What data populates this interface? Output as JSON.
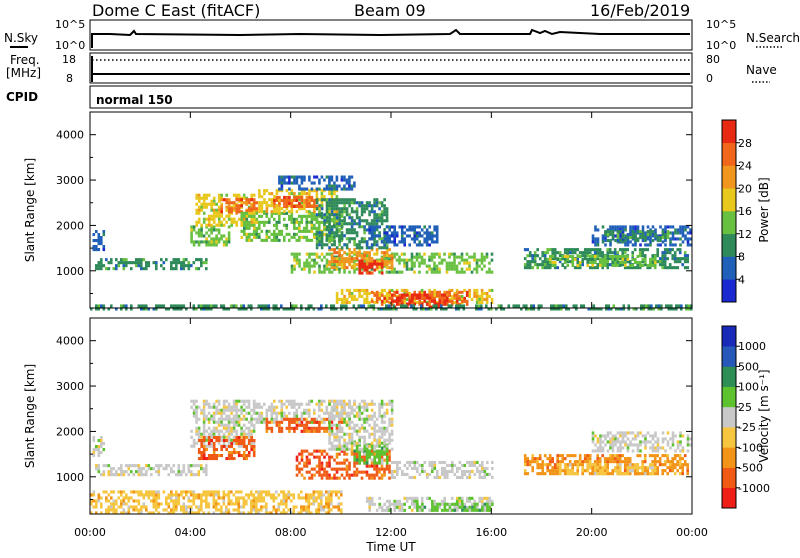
{
  "header": {
    "station": "Dome C East (fitACF)",
    "beam": "Beam 09",
    "date": "16/Feb/2019"
  },
  "top_panels": {
    "nsky_label": "N.Sky",
    "nsky_ticks": [
      "10^5",
      "10^0"
    ],
    "nsearch_label": "N.Search",
    "nsearch_ticks": [
      "10^5",
      "10^0"
    ],
    "freq_label_1": "Freq.",
    "freq_label_2": "[MHz]",
    "freq_ticks": [
      "18",
      "8"
    ],
    "nave_label": "Nave",
    "nave_ticks": [
      "80",
      "0"
    ],
    "cpid_label": "CPID",
    "cpid_value": "normal 150"
  },
  "colors": {
    "power": [
      "#1a2ad0",
      "#2060b8",
      "#2f8a5a",
      "#68c040",
      "#e8c81c",
      "#f0961e",
      "#f0661a",
      "#e82a12"
    ],
    "velocity": [
      "#ef1e16",
      "#f05a14",
      "#f39418",
      "#f6c640",
      "#c8c8c8",
      "#5cc22e",
      "#2e8f56",
      "#2558b8",
      "#1a2ab8"
    ],
    "ground_scatter": "#c8c8c8"
  },
  "chart_data": [
    {
      "type": "heatmap",
      "name": "power",
      "xlabel": "Time UT",
      "ylabel": "Slant Range [km]",
      "xlim": [
        0,
        24
      ],
      "ylim": [
        180,
        4500
      ],
      "x_tick_labels": [
        "00:00",
        "04:00",
        "08:00",
        "12:00",
        "16:00",
        "20:00",
        "00:00"
      ],
      "y_ticks": [
        1000,
        2000,
        3000,
        4000
      ],
      "colorbar": {
        "label": "Power [dB]",
        "tick_labels": [
          "28",
          "24",
          "20",
          "16",
          "12",
          "8",
          "4"
        ],
        "range": [
          0,
          32
        ]
      },
      "regions": [
        {
          "t0": 0.1,
          "t1": 0.5,
          "r0": 1500,
          "r1": 1900,
          "level": 1
        },
        {
          "t0": 0.2,
          "t1": 4.6,
          "r0": 1020,
          "r1": 1280,
          "level": 2
        },
        {
          "t0": 4.0,
          "t1": 5.5,
          "r0": 1600,
          "r1": 2000,
          "level": 3
        },
        {
          "t0": 4.2,
          "t1": 6.5,
          "r0": 2000,
          "r1": 2700,
          "level": 4
        },
        {
          "t0": 5.2,
          "t1": 6.6,
          "r0": 2300,
          "r1": 2600,
          "level": 6
        },
        {
          "t0": 6.0,
          "t1": 10.0,
          "r0": 1700,
          "r1": 2300,
          "level": 3
        },
        {
          "t0": 6.7,
          "t1": 9.8,
          "r0": 2300,
          "r1": 2800,
          "level": 4
        },
        {
          "t0": 7.3,
          "t1": 9.0,
          "r0": 2450,
          "r1": 2650,
          "level": 6
        },
        {
          "t0": 7.5,
          "t1": 10.5,
          "r0": 2800,
          "r1": 3100,
          "level": 1
        },
        {
          "t0": 8.0,
          "t1": 16.0,
          "r0": 1000,
          "r1": 1400,
          "level": 3
        },
        {
          "t0": 9.5,
          "t1": 12.0,
          "r0": 1100,
          "r1": 1500,
          "level": 5
        },
        {
          "t0": 10.7,
          "t1": 11.6,
          "r0": 950,
          "r1": 1250,
          "level": 7
        },
        {
          "t0": 9.0,
          "t1": 11.8,
          "r0": 1500,
          "r1": 2600,
          "level": 2
        },
        {
          "t0": 11.0,
          "t1": 13.8,
          "r0": 1600,
          "r1": 2000,
          "level": 1
        },
        {
          "t0": 9.8,
          "t1": 16.0,
          "r0": 330,
          "r1": 600,
          "level": 4
        },
        {
          "t0": 11.2,
          "t1": 15.0,
          "r0": 250,
          "r1": 560,
          "level": 6
        },
        {
          "t0": 12.0,
          "t1": 14.2,
          "r0": 200,
          "r1": 500,
          "level": 7
        },
        {
          "t0": 0.0,
          "t1": 24.0,
          "r0": 190,
          "r1": 260,
          "level": 2
        },
        {
          "t0": 17.3,
          "t1": 23.8,
          "r0": 1050,
          "r1": 1500,
          "level": 2
        },
        {
          "t0": 18.2,
          "t1": 22.5,
          "r0": 1100,
          "r1": 1350,
          "level": 3
        },
        {
          "t0": 20.0,
          "t1": 23.9,
          "r0": 1600,
          "r1": 2000,
          "level": 1
        },
        {
          "t0": 20.5,
          "t1": 23.0,
          "r0": 1700,
          "r1": 1900,
          "level": 2
        }
      ]
    },
    {
      "type": "heatmap",
      "name": "velocity",
      "xlabel": "Time UT",
      "ylabel": "Slant Range [km]",
      "xlim": [
        0,
        24
      ],
      "ylim": [
        180,
        4500
      ],
      "x_tick_labels": [
        "00:00",
        "04:00",
        "08:00",
        "12:00",
        "16:00",
        "20:00",
        "00:00"
      ],
      "y_ticks": [
        1000,
        2000,
        3000,
        4000
      ],
      "colorbar": {
        "label": "Velocity [m s⁻¹]",
        "tick_labels": [
          "1000",
          "500",
          "100",
          "25",
          "-25",
          "-100",
          "-500",
          "-1000"
        ],
        "range": [
          -1200,
          1200
        ]
      },
      "regions": [
        {
          "t0": 0.1,
          "t1": 0.5,
          "r0": 1500,
          "r1": 1900,
          "level": 4
        },
        {
          "t0": 0.2,
          "t1": 4.6,
          "r0": 1020,
          "r1": 1280,
          "level": 4
        },
        {
          "t0": 4.0,
          "t1": 6.5,
          "r0": 1700,
          "r1": 2700,
          "level": 4
        },
        {
          "t0": 6.5,
          "t1": 10.5,
          "r0": 2200,
          "r1": 2700,
          "level": 4
        },
        {
          "t0": 7.0,
          "t1": 10.0,
          "r0": 2000,
          "r1": 2300,
          "level": 1
        },
        {
          "t0": 4.3,
          "t1": 6.5,
          "r0": 1400,
          "r1": 1900,
          "level": 1
        },
        {
          "t0": 8.2,
          "t1": 11.9,
          "r0": 950,
          "r1": 1600,
          "level": 1
        },
        {
          "t0": 10.5,
          "t1": 11.8,
          "r0": 1300,
          "r1": 1800,
          "level": 5
        },
        {
          "t0": 9.5,
          "t1": 12.0,
          "r0": 1600,
          "r1": 2700,
          "level": 4
        },
        {
          "t0": 12.0,
          "t1": 16.0,
          "r0": 1000,
          "r1": 1350,
          "level": 4
        },
        {
          "t0": 11.0,
          "t1": 16.0,
          "r0": 250,
          "r1": 560,
          "level": 4
        },
        {
          "t0": 13.0,
          "t1": 16.0,
          "r0": 280,
          "r1": 430,
          "level": 5
        },
        {
          "t0": 0.0,
          "t1": 10.0,
          "r0": 190,
          "r1": 700,
          "level": 3
        },
        {
          "t0": 17.3,
          "t1": 23.8,
          "r0": 1050,
          "r1": 1500,
          "level": 2
        },
        {
          "t0": 18.5,
          "t1": 22.5,
          "r0": 1100,
          "r1": 1300,
          "level": 3
        },
        {
          "t0": 20.0,
          "t1": 23.9,
          "r0": 1600,
          "r1": 2000,
          "level": 4
        }
      ]
    }
  ]
}
